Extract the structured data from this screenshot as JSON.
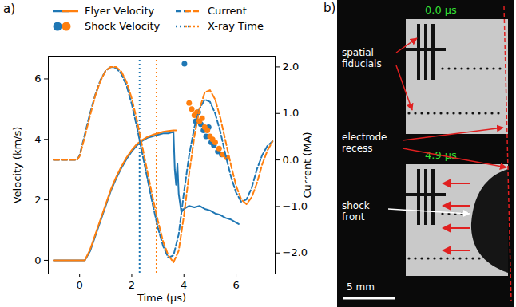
{
  "chart_data": {
    "type": "line",
    "panel_label": "a)",
    "xlabel": "Time (μs)",
    "ylabel": "Velocity (km/s)",
    "y2label": "Current (MA)",
    "xlim": [
      -1.2,
      7.5
    ],
    "xticks": [
      0,
      2,
      4,
      6
    ],
    "ylim": [
      -0.45,
      6.75
    ],
    "yticks": [
      0,
      2,
      4,
      6
    ],
    "y2lim": [
      -2.45,
      2.23
    ],
    "y2ticks": [
      -2,
      -1,
      0,
      1,
      2
    ],
    "legend": "top",
    "series": [
      {
        "name": "Flyer Velocity",
        "type": "line",
        "line_style": "solid",
        "color": "#1f77b4",
        "x": [
          -1.0,
          0.2,
          0.4,
          0.6,
          0.8,
          1.0,
          1.2,
          1.4,
          1.6,
          1.8,
          2.0,
          2.2,
          2.4,
          2.6,
          2.8,
          3.0,
          3.2,
          3.4,
          3.6,
          3.65,
          3.7,
          3.75,
          3.8,
          3.9,
          4.0,
          4.2,
          4.4,
          4.6,
          4.8,
          5.0,
          5.2,
          5.4,
          5.6,
          5.8,
          6.0,
          6.1
        ],
        "values": [
          0,
          0,
          0.3,
          0.8,
          1.3,
          1.8,
          2.3,
          2.7,
          3.05,
          3.35,
          3.6,
          3.8,
          3.95,
          4.05,
          4.1,
          4.15,
          4.2,
          4.2,
          4.25,
          3.0,
          2.5,
          3.2,
          2.2,
          1.6,
          1.7,
          1.8,
          1.75,
          1.8,
          1.7,
          1.65,
          1.55,
          1.5,
          1.4,
          1.35,
          1.25,
          1.2
        ]
      },
      {
        "name": "Flyer Velocity",
        "type": "line",
        "line_style": "solid",
        "color": "#ff7f0e",
        "x": [
          -1.0,
          0.2,
          0.4,
          0.6,
          0.8,
          1.0,
          1.2,
          1.4,
          1.6,
          1.8,
          2.0,
          2.2,
          2.4,
          2.6,
          2.8,
          3.0,
          3.2,
          3.4,
          3.6,
          3.7
        ],
        "values": [
          0,
          0,
          0.35,
          0.85,
          1.35,
          1.85,
          2.35,
          2.75,
          3.1,
          3.4,
          3.65,
          3.85,
          3.98,
          4.08,
          4.15,
          4.2,
          4.25,
          4.28,
          4.3,
          4.3
        ]
      },
      {
        "name": "Current",
        "type": "line",
        "line_style": "dashed",
        "axis": "y2",
        "color": "#1f77b4",
        "x": [
          -1.0,
          -0.1,
          0.0,
          0.2,
          0.4,
          0.6,
          0.8,
          1.0,
          1.2,
          1.4,
          1.6,
          1.8,
          2.0,
          2.2,
          2.4,
          2.6,
          2.8,
          3.0,
          3.2,
          3.4,
          3.6,
          3.8,
          4.0,
          4.2,
          4.4,
          4.6,
          4.8,
          5.0,
          5.2,
          5.4,
          5.6,
          5.8,
          6.0,
          6.2,
          6.4,
          6.6,
          6.8,
          7.0,
          7.2,
          7.4
        ],
        "values": [
          0,
          0,
          0.1,
          0.55,
          1.0,
          1.4,
          1.72,
          1.92,
          2.0,
          1.98,
          1.85,
          1.6,
          1.2,
          0.7,
          0.15,
          -0.4,
          -0.95,
          -1.45,
          -1.85,
          -2.1,
          -2.05,
          -1.6,
          -0.7,
          0.1,
          0.7,
          1.1,
          1.3,
          1.25,
          1.0,
          0.6,
          0.1,
          -0.35,
          -0.7,
          -0.9,
          -0.85,
          -0.6,
          -0.2,
          0.1,
          0.3,
          0.4
        ]
      },
      {
        "name": "Current",
        "type": "line",
        "line_style": "dashed",
        "axis": "y2",
        "color": "#ff7f0e",
        "x": [
          -1.0,
          -0.1,
          0.0,
          0.2,
          0.4,
          0.6,
          0.8,
          1.0,
          1.2,
          1.4,
          1.6,
          1.8,
          2.0,
          2.2,
          2.4,
          2.6,
          2.8,
          3.0,
          3.2,
          3.4,
          3.6,
          3.8,
          4.0,
          4.2,
          4.4,
          4.6,
          4.8,
          5.0,
          5.2,
          5.4,
          5.6,
          5.8,
          6.0,
          6.2,
          6.4,
          6.6,
          6.8,
          7.0,
          7.2,
          7.4
        ],
        "values": [
          0,
          0,
          0.08,
          0.5,
          0.95,
          1.38,
          1.7,
          1.92,
          2.0,
          2.0,
          1.9,
          1.68,
          1.32,
          0.85,
          0.3,
          -0.25,
          -0.8,
          -1.3,
          -1.75,
          -2.05,
          -2.2,
          -1.95,
          -1.2,
          -0.3,
          0.5,
          1.1,
          1.45,
          1.5,
          1.3,
          0.9,
          0.4,
          -0.1,
          -0.55,
          -0.85,
          -0.95,
          -0.8,
          -0.5,
          -0.1,
          0.2,
          0.4
        ]
      },
      {
        "name": "Shock Velocity",
        "type": "scatter",
        "marker": "circle",
        "color": "#1f77b4",
        "x": [
          4.02,
          4.45,
          4.55,
          4.65,
          4.75,
          4.85,
          4.95,
          5.05,
          5.15,
          5.3,
          5.45
        ],
        "values": [
          6.5,
          4.6,
          4.9,
          4.5,
          4.3,
          4.1,
          4.4,
          3.9,
          3.8,
          3.6,
          3.5
        ]
      },
      {
        "name": "Shock Velocity",
        "type": "scatter",
        "marker": "circle",
        "color": "#ff7f0e",
        "x": [
          4.2,
          4.3,
          4.4,
          4.5,
          4.6,
          4.7,
          4.8,
          4.9,
          5.0,
          5.1,
          5.2,
          5.35,
          5.5,
          5.65
        ],
        "values": [
          5.2,
          5.0,
          4.8,
          4.9,
          4.6,
          4.7,
          4.4,
          4.3,
          4.1,
          4.0,
          3.9,
          3.7,
          3.5,
          3.4
        ]
      },
      {
        "name": "X-ray Time",
        "type": "vline",
        "line_style": "dotted",
        "color": "#1f77b4",
        "x": [
          2.3
        ]
      },
      {
        "name": "X-ray Time",
        "type": "vline",
        "line_style": "dotted",
        "color": "#ff7f0e",
        "x": [
          2.95
        ]
      }
    ]
  },
  "image_panel": {
    "label": "b)",
    "frames": [
      "0.0 μs",
      "4.9 μs"
    ],
    "annotations": [
      "spatial fiducials",
      "electrode recess",
      "shock front"
    ],
    "scale_bar": "5 mm"
  }
}
